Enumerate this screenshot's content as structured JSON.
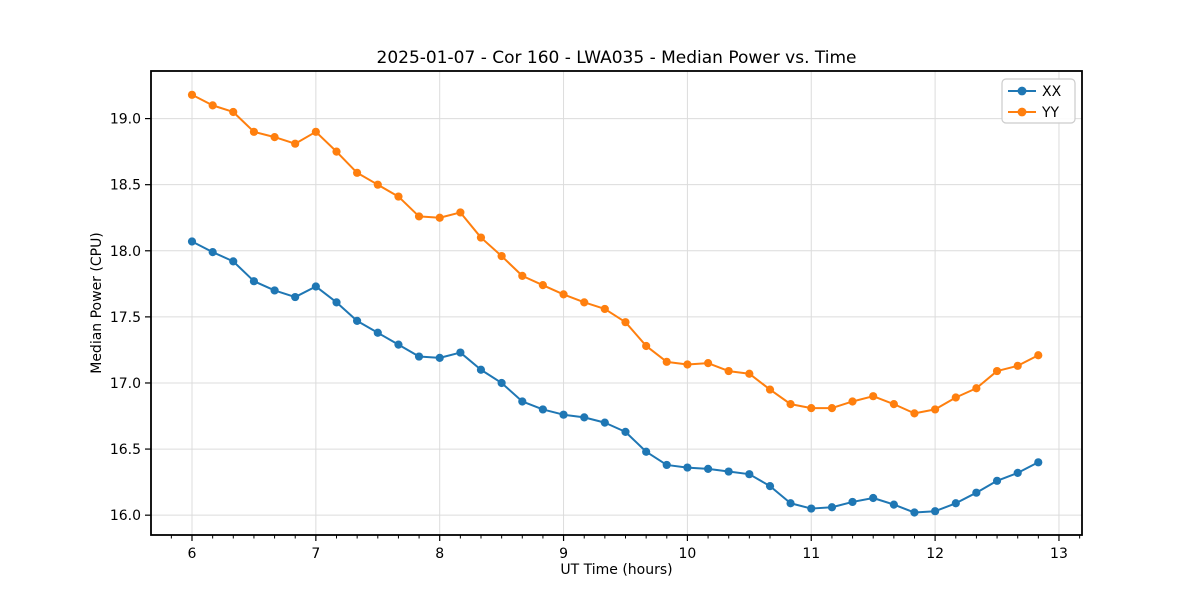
{
  "chart_data": {
    "type": "line",
    "title": "2025-01-07 - Cor 160 - LWA035 - Median Power vs. Time",
    "xlabel": "UT Time (hours)",
    "ylabel": "Median Power (CPU)",
    "x": [
      6.0,
      6.167,
      6.333,
      6.5,
      6.667,
      6.833,
      7.0,
      7.167,
      7.333,
      7.5,
      7.667,
      7.833,
      8.0,
      8.167,
      8.333,
      8.5,
      8.667,
      8.833,
      9.0,
      9.167,
      9.333,
      9.5,
      9.667,
      9.833,
      10.0,
      10.167,
      10.333,
      10.5,
      10.667,
      10.833,
      11.0,
      11.167,
      11.333,
      11.5,
      11.667,
      11.833,
      12.0,
      12.167,
      12.333,
      12.5,
      12.667,
      12.833
    ],
    "series": [
      {
        "name": "XX",
        "color": "#1f77b4",
        "values": [
          18.07,
          17.99,
          17.92,
          17.77,
          17.7,
          17.65,
          17.73,
          17.61,
          17.47,
          17.38,
          17.29,
          17.2,
          17.19,
          17.23,
          17.1,
          17.0,
          16.86,
          16.8,
          16.76,
          16.74,
          16.7,
          16.63,
          16.48,
          16.38,
          16.36,
          16.35,
          16.33,
          16.31,
          16.22,
          16.09,
          16.05,
          16.06,
          16.1,
          16.13,
          16.08,
          16.02,
          16.03,
          16.09,
          16.17,
          16.26,
          16.32,
          16.4
        ]
      },
      {
        "name": "YY",
        "color": "#ff7f0e",
        "values": [
          19.18,
          19.1,
          19.05,
          18.9,
          18.86,
          18.81,
          18.9,
          18.75,
          18.59,
          18.5,
          18.41,
          18.26,
          18.25,
          18.29,
          18.1,
          17.96,
          17.81,
          17.74,
          17.67,
          17.61,
          17.56,
          17.46,
          17.28,
          17.16,
          17.14,
          17.15,
          17.09,
          17.07,
          16.95,
          16.84,
          16.81,
          16.81,
          16.86,
          16.9,
          16.84,
          16.77,
          16.8,
          16.89,
          16.96,
          17.09,
          17.13,
          17.21
        ]
      }
    ],
    "xticks": [
      6,
      7,
      8,
      9,
      10,
      11,
      12,
      13
    ],
    "xtick_labels": [
      "6",
      "7",
      "8",
      "9",
      "10",
      "11",
      "12",
      "13"
    ],
    "yticks": [
      16.0,
      16.5,
      17.0,
      17.5,
      18.0,
      18.5,
      19.0
    ],
    "ytick_labels": [
      "16.0",
      "16.5",
      "17.0",
      "17.5",
      "18.0",
      "18.5",
      "19.0"
    ],
    "xlim": [
      5.669,
      13.186
    ],
    "ylim": [
      15.85,
      19.36
    ],
    "x_minor_tick_step": 0.16667,
    "grid": true,
    "grid_color": "#dcdcdc",
    "axes_edge_color": "#000000",
    "background": "#ffffff",
    "legend_position": "upper right"
  }
}
